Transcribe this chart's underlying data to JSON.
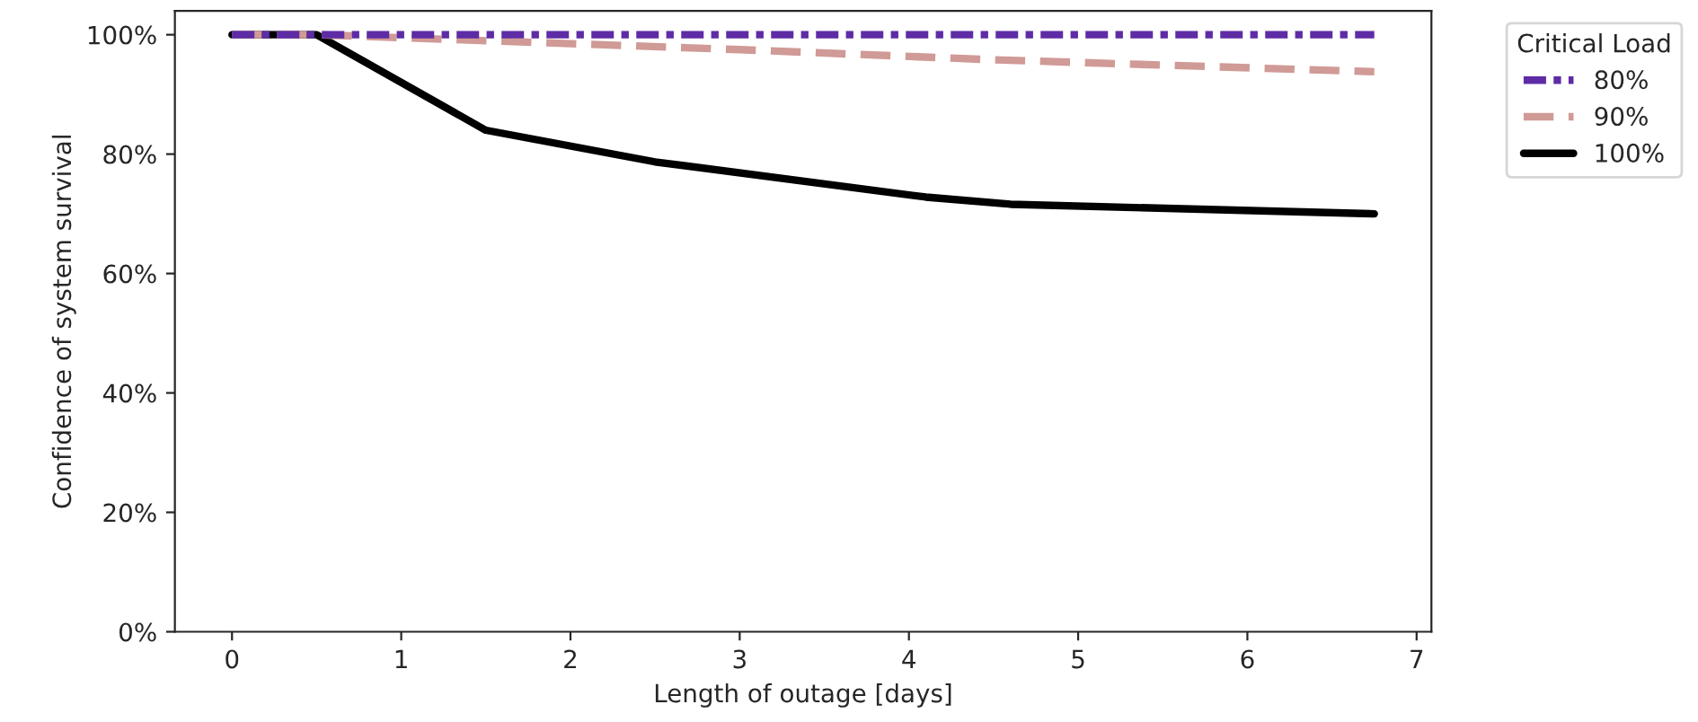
{
  "chart_data": {
    "type": "line",
    "xlabel": "Length of outage [days]",
    "ylabel": "Confidence of system survival",
    "legend_title": "Critical Load",
    "legend": "top right",
    "xlim": [
      -0.3375,
      7.0875
    ],
    "xticks": [
      0,
      1,
      2,
      3,
      4,
      5,
      6,
      7
    ],
    "ylim": [
      0,
      1.04
    ],
    "yticks": [
      {
        "value": 0,
        "label": "0%"
      },
      {
        "value": 0.2,
        "label": "20%"
      },
      {
        "value": 0.4,
        "label": "40%"
      },
      {
        "value": 0.6,
        "label": "60%"
      },
      {
        "value": 0.8,
        "label": "80%"
      },
      {
        "value": 1.0,
        "label": "100%"
      }
    ],
    "grid": false,
    "series": [
      {
        "name": "80%",
        "color": "#5e2ca5",
        "line_style": "dashdot",
        "x": [
          0,
          0.5,
          6.75
        ],
        "values": [
          1.0,
          1.0,
          1.0
        ]
      },
      {
        "name": "90%",
        "color": "#d09a96",
        "line_style": "dashed",
        "x": [
          0,
          0.5,
          1.5,
          3.0,
          4.5,
          6.75
        ],
        "values": [
          1.0,
          1.0,
          0.99,
          0.975,
          0.958,
          0.938
        ]
      },
      {
        "name": "100%",
        "color": "#000000",
        "line_style": "solid",
        "x": [
          0,
          0.5,
          1.5,
          2.5,
          4.1,
          4.6,
          6.75
        ],
        "values": [
          1.0,
          1.0,
          0.84,
          0.787,
          0.728,
          0.716,
          0.7
        ]
      }
    ]
  }
}
